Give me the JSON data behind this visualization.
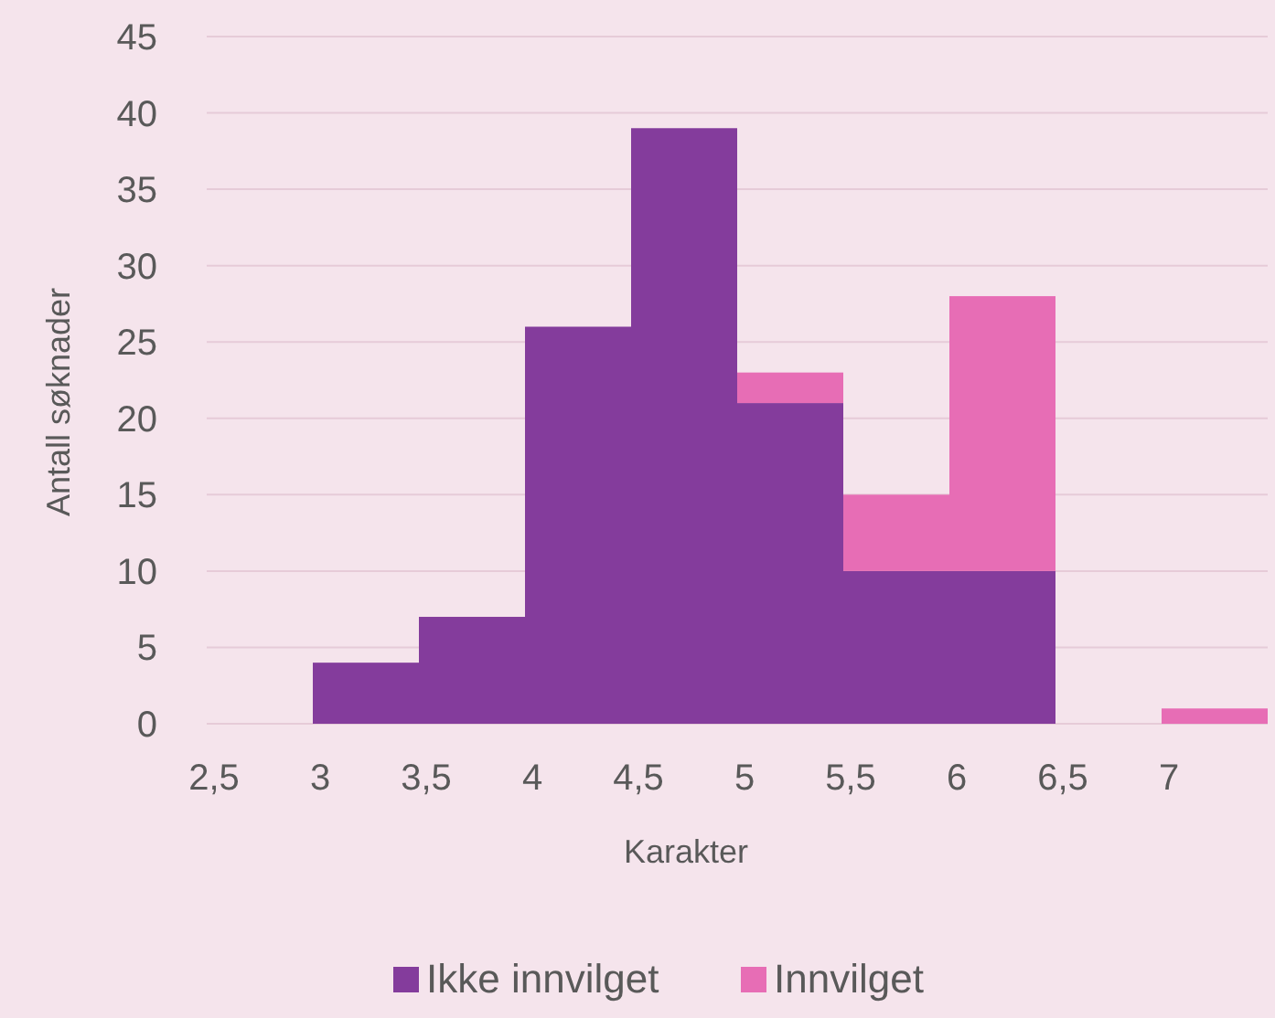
{
  "chart_data": {
    "type": "bar",
    "stacked": true,
    "xlabel": "Karakter",
    "ylabel": "Antall søknader",
    "categories": [
      "2,5",
      "3",
      "3,5",
      "4",
      "4,5",
      "5",
      "5,5",
      "6",
      "6,5",
      "7"
    ],
    "series": [
      {
        "name": "Ikke innvilget",
        "color": "#843c9c",
        "values": [
          0,
          4,
          7,
          26,
          39,
          21,
          10,
          10,
          0,
          0
        ]
      },
      {
        "name": "Innvilget",
        "color": "#e76db5",
        "values": [
          0,
          0,
          0,
          0,
          0,
          2,
          5,
          18,
          0,
          1
        ]
      }
    ],
    "ylim": [
      0,
      45
    ],
    "yticks": [
      0,
      5,
      10,
      15,
      20,
      25,
      30,
      35,
      40,
      45
    ],
    "grid": "y",
    "legend": "bottom"
  }
}
